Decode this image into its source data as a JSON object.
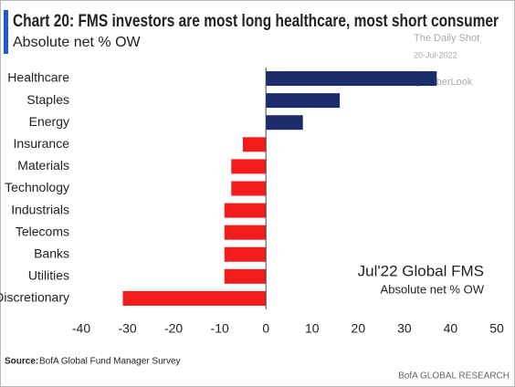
{
  "chart_data": {
    "type": "hbar",
    "title": "Chart 20: FMS investors are most long healthcare, most short consumer",
    "subtitle": "Absolute net % OW",
    "watermark": [
      "The Daily Shot",
      "20-Jul-2022",
      "@SoberLook"
    ],
    "categories": [
      "Healthcare",
      "Staples",
      "Energy",
      "Insurance",
      "Materials",
      "Technology",
      "Industrials",
      "Telecoms",
      "Banks",
      "Utilities",
      "Discretionary"
    ],
    "values": [
      37,
      16,
      8,
      -5,
      -7.5,
      -7.5,
      -9,
      -9,
      -9,
      -9,
      -31
    ],
    "color_positive": "#1b2c6b",
    "color_negative": "#f21c1c",
    "xlim": [
      -40,
      50
    ],
    "xticks": [
      -40,
      -30,
      -20,
      -10,
      0,
      10,
      20,
      30,
      40,
      50
    ],
    "annotation": [
      "Jul'22 Global FMS",
      "Absolute net % OW"
    ],
    "source_label": "Source:",
    "source": "BofA Global Fund Manager Survey",
    "footer": "BofA GLOBAL RESEARCH"
  }
}
